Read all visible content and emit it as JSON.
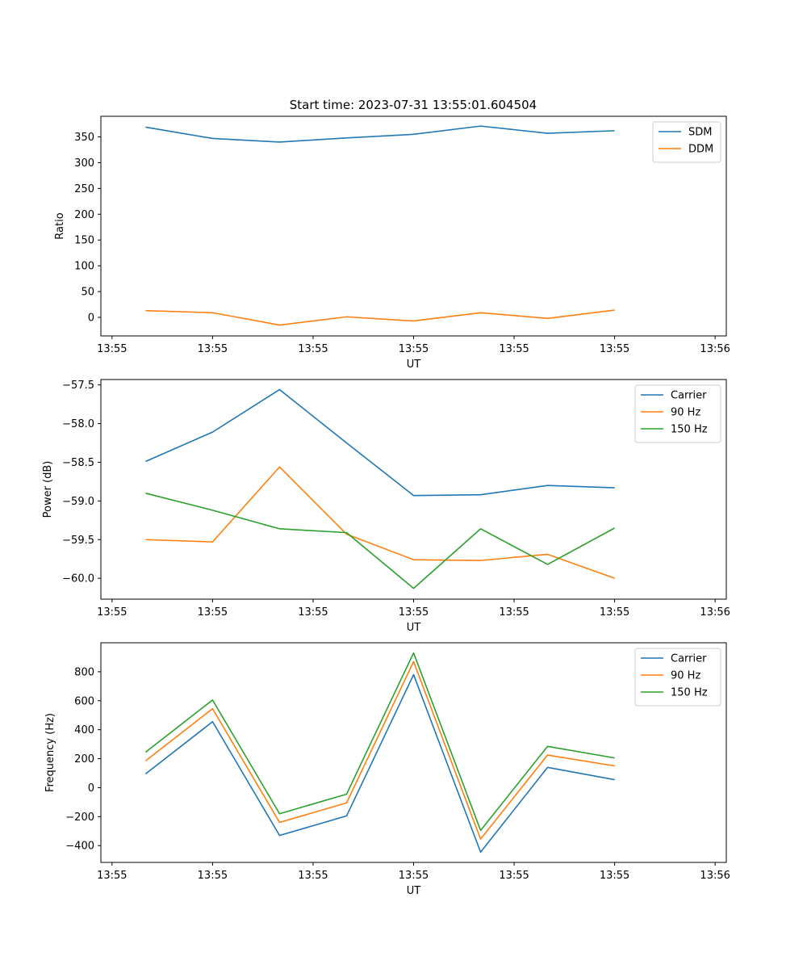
{
  "figure": {
    "title": "Start time: 2023-07-31 13:55:01.604504"
  },
  "colors": {
    "blue": "#1f77b4",
    "orange": "#ff7f0e",
    "green": "#2ca02c"
  },
  "chart_data": [
    {
      "type": "line",
      "title": "Start time: 2023-07-31 13:55:01.604504",
      "xlabel": "UT",
      "ylabel": "Ratio",
      "x": [
        1,
        2,
        3,
        4,
        5,
        6,
        7,
        8
      ],
      "xlim": [
        0.3333,
        9.6667
      ],
      "xticks": [
        0.5,
        2.0,
        3.5,
        5.0,
        6.5,
        8.0,
        9.5
      ],
      "xtick_labels": [
        "13:55",
        "13:55",
        "13:55",
        "13:55",
        "13:55",
        "13:55",
        "13:56"
      ],
      "ylim": [
        -36,
        390
      ],
      "yticks": [
        0,
        50,
        100,
        150,
        200,
        250,
        300,
        350
      ],
      "ytick_labels": [
        "0",
        "50",
        "100",
        "150",
        "200",
        "250",
        "300",
        "350"
      ],
      "legend_position": "top-right",
      "series": [
        {
          "name": "SDM",
          "color": "blue",
          "values": [
            369,
            347,
            340,
            348,
            355,
            371,
            357,
            362
          ]
        },
        {
          "name": "DDM",
          "color": "orange",
          "values": [
            13,
            9,
            -15,
            1,
            -7,
            9,
            -2,
            14
          ]
        }
      ]
    },
    {
      "type": "line",
      "title": "",
      "xlabel": "UT",
      "ylabel": "Power (dB)",
      "x": [
        1,
        2,
        3,
        4,
        5,
        6,
        7,
        8
      ],
      "xlim": [
        0.3333,
        9.6667
      ],
      "xticks": [
        0.5,
        2.0,
        3.5,
        5.0,
        6.5,
        8.0,
        9.5
      ],
      "xtick_labels": [
        "13:55",
        "13:55",
        "13:55",
        "13:55",
        "13:55",
        "13:55",
        "13:56"
      ],
      "ylim": [
        -60.27,
        -57.43
      ],
      "yticks": [
        -60.0,
        -59.5,
        -59.0,
        -58.5,
        -58.0,
        -57.5
      ],
      "ytick_labels": [
        "−60.0",
        "−59.5",
        "−59.0",
        "−58.5",
        "−58.0",
        "−57.5"
      ],
      "legend_position": "top-right",
      "series": [
        {
          "name": "Carrier",
          "color": "blue",
          "values": [
            -58.49,
            -58.11,
            -57.56,
            -58.25,
            -58.93,
            -58.92,
            -58.8,
            -58.83
          ]
        },
        {
          "name": "90 Hz",
          "color": "orange",
          "values": [
            -59.5,
            -59.53,
            -58.56,
            -59.43,
            -59.76,
            -59.77,
            -59.69,
            -60.0
          ]
        },
        {
          "name": "150 Hz",
          "color": "green",
          "values": [
            -58.9,
            -59.12,
            -59.36,
            -59.41,
            -60.13,
            -59.36,
            -59.82,
            -59.35
          ]
        }
      ]
    },
    {
      "type": "line",
      "title": "",
      "xlabel": "UT",
      "ylabel": "Frequency (Hz)",
      "x": [
        1,
        2,
        3,
        4,
        5,
        6,
        7,
        8
      ],
      "xlim": [
        0.3333,
        9.6667
      ],
      "xticks": [
        0.5,
        2.0,
        3.5,
        5.0,
        6.5,
        8.0,
        9.5
      ],
      "xtick_labels": [
        "13:55",
        "13:55",
        "13:55",
        "13:55",
        "13:55",
        "13:55",
        "13:56"
      ],
      "ylim": [
        -516,
        1000
      ],
      "yticks": [
        -400,
        -200,
        0,
        200,
        400,
        600,
        800
      ],
      "ytick_labels": [
        "−400",
        "−200",
        "0",
        "200",
        "400",
        "600",
        "800"
      ],
      "legend_position": "top-right",
      "series": [
        {
          "name": "Carrier",
          "color": "blue",
          "values": [
            95,
            455,
            -330,
            -195,
            780,
            -445,
            140,
            55
          ]
        },
        {
          "name": "90 Hz",
          "color": "orange",
          "values": [
            185,
            545,
            -240,
            -105,
            870,
            -355,
            225,
            150
          ]
        },
        {
          "name": "150 Hz",
          "color": "green",
          "values": [
            245,
            605,
            -180,
            -45,
            930,
            -295,
            285,
            205
          ]
        }
      ]
    }
  ]
}
